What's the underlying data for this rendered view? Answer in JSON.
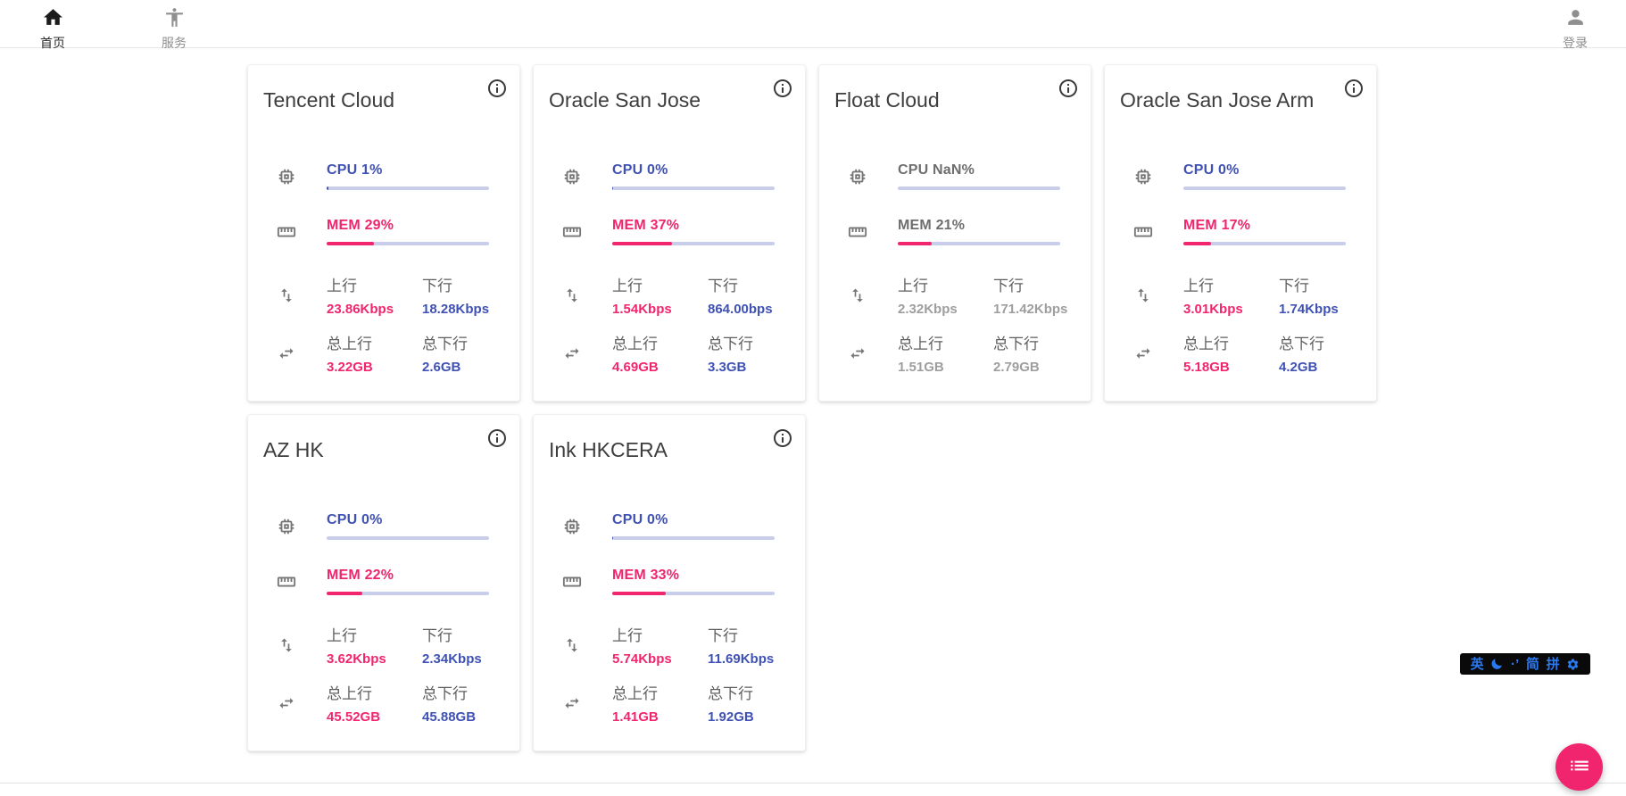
{
  "navbar": {
    "home": {
      "label": "首页",
      "icon": "home-icon",
      "active": true
    },
    "services": {
      "label": "服务",
      "icon": "accessibility-icon",
      "active": false
    },
    "login": {
      "label": "登录",
      "icon": "person-icon",
      "active": false
    }
  },
  "labels": {
    "up": "上行",
    "down": "下行",
    "total_up": "总上行",
    "total_down": "总下行"
  },
  "cards": [
    {
      "title": "Tencent Cloud",
      "cpu_label": "CPU 1%",
      "cpu_pct": 1,
      "mem_label": "MEM 29%",
      "mem_pct": 29,
      "up_value": "23.86Kbps",
      "down_value": "18.28Kbps",
      "total_up_value": "3.22GB",
      "total_down_value": "2.6GB",
      "muted": false
    },
    {
      "title": "Oracle San Jose",
      "cpu_label": "CPU 0%",
      "cpu_pct": 0.5,
      "mem_label": "MEM 37%",
      "mem_pct": 37,
      "up_value": "1.54Kbps",
      "down_value": "864.00bps",
      "total_up_value": "4.69GB",
      "total_down_value": "3.3GB",
      "muted": false
    },
    {
      "title": "Float Cloud",
      "cpu_label": "CPU NaN%",
      "cpu_pct": null,
      "mem_label": "MEM 21%",
      "mem_pct": 21,
      "up_value": "2.32Kbps",
      "down_value": "171.42Kbps",
      "total_up_value": "1.51GB",
      "total_down_value": "2.79GB",
      "muted": true
    },
    {
      "title": "Oracle San Jose Arm",
      "cpu_label": "CPU 0%",
      "cpu_pct": 0,
      "mem_label": "MEM 17%",
      "mem_pct": 17,
      "up_value": "3.01Kbps",
      "down_value": "1.74Kbps",
      "total_up_value": "5.18GB",
      "total_down_value": "4.2GB",
      "muted": false
    },
    {
      "title": "AZ HK",
      "cpu_label": "CPU 0%",
      "cpu_pct": 0,
      "mem_label": "MEM 22%",
      "mem_pct": 22,
      "up_value": "3.62Kbps",
      "down_value": "2.34Kbps",
      "total_up_value": "45.52GB",
      "total_down_value": "45.88GB",
      "muted": false
    },
    {
      "title": "Ink HKCERA",
      "cpu_label": "CPU 0%",
      "cpu_pct": 0.5,
      "mem_label": "MEM 33%",
      "mem_pct": 33,
      "up_value": "5.74Kbps",
      "down_value": "11.69Kbps",
      "total_up_value": "1.41GB",
      "total_down_value": "1.92GB",
      "muted": false
    }
  ],
  "ime_bar": {
    "en_label": "英",
    "moon_icon": "moon-icon",
    "punct_label": "·’",
    "simplified_label": "简",
    "pinyin_label": "拼",
    "settings_icon": "gear-icon"
  },
  "fab": {
    "icon": "list-icon"
  },
  "colors": {
    "accent_indigo": "#3f51b5",
    "accent_pink": "#f1256d",
    "muted_gray": "#9e9e9e",
    "bar_track": "#c9cdec",
    "ime_blue": "#2a79f0",
    "ime_background": "#0a0a0a",
    "fab_pink": "#f1256d"
  }
}
